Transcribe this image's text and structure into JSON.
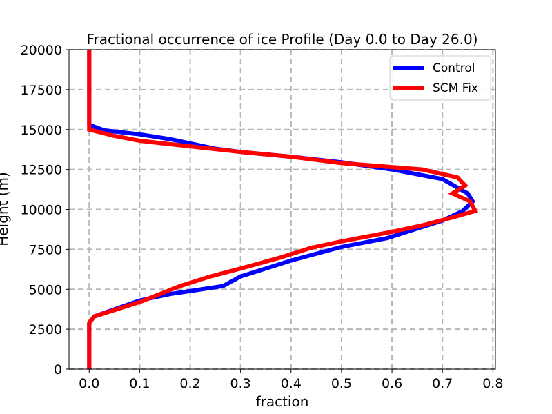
{
  "chart_data": {
    "type": "line",
    "title": "Fractional occurrence of ice Profile (Day 0.0 to Day 26.0)",
    "xlabel": "fraction",
    "ylabel": "Height (m)",
    "xlim": [
      -0.04,
      0.805
    ],
    "ylim": [
      0,
      20000
    ],
    "x_ticks": [
      0.0,
      0.1,
      0.2,
      0.3,
      0.4,
      0.5,
      0.6,
      0.7,
      0.8
    ],
    "x_tick_labels": [
      "0.0",
      "0.1",
      "0.2",
      "0.3",
      "0.4",
      "0.5",
      "0.6",
      "0.7",
      "0.8"
    ],
    "y_ticks": [
      0,
      2500,
      5000,
      7500,
      10000,
      12500,
      15000,
      17500,
      20000
    ],
    "y_tick_labels": [
      "0",
      "2500",
      "5000",
      "7500",
      "10000",
      "12500",
      "15000",
      "17500",
      "20000"
    ],
    "grid": true,
    "legend_position": "top-right",
    "series": [
      {
        "name": "Control",
        "color": "#0000ff",
        "points": [
          [
            0.0,
            0
          ],
          [
            0.0,
            2900
          ],
          [
            0.01,
            3300
          ],
          [
            0.1,
            4300
          ],
          [
            0.16,
            4700
          ],
          [
            0.265,
            5200
          ],
          [
            0.3,
            5800
          ],
          [
            0.4,
            6800
          ],
          [
            0.5,
            7650
          ],
          [
            0.59,
            8200
          ],
          [
            0.65,
            8800
          ],
          [
            0.7,
            9300
          ],
          [
            0.74,
            9900
          ],
          [
            0.76,
            10500
          ],
          [
            0.75,
            11000
          ],
          [
            0.7,
            11900
          ],
          [
            0.6,
            12500
          ],
          [
            0.5,
            12950
          ],
          [
            0.4,
            13300
          ],
          [
            0.3,
            13600
          ],
          [
            0.25,
            13800
          ],
          [
            0.16,
            14400
          ],
          [
            0.1,
            14700
          ],
          [
            0.03,
            14950
          ],
          [
            0.0,
            15300
          ],
          [
            0.0,
            20000
          ]
        ]
      },
      {
        "name": "SCM Fix",
        "color": "#ff0000",
        "points": [
          [
            0.0,
            0
          ],
          [
            0.0,
            2900
          ],
          [
            0.01,
            3300
          ],
          [
            0.1,
            4200
          ],
          [
            0.18,
            5200
          ],
          [
            0.24,
            5800
          ],
          [
            0.3,
            6300
          ],
          [
            0.38,
            7000
          ],
          [
            0.44,
            7600
          ],
          [
            0.5,
            8000
          ],
          [
            0.6,
            8600
          ],
          [
            0.66,
            9000
          ],
          [
            0.72,
            9500
          ],
          [
            0.765,
            9900
          ],
          [
            0.755,
            10500
          ],
          [
            0.72,
            11000
          ],
          [
            0.745,
            11500
          ],
          [
            0.73,
            12000
          ],
          [
            0.66,
            12500
          ],
          [
            0.5,
            12900
          ],
          [
            0.4,
            13300
          ],
          [
            0.3,
            13600
          ],
          [
            0.2,
            13950
          ],
          [
            0.1,
            14300
          ],
          [
            0.05,
            14600
          ],
          [
            0.0,
            15000
          ],
          [
            0.0,
            20000
          ]
        ]
      }
    ]
  }
}
